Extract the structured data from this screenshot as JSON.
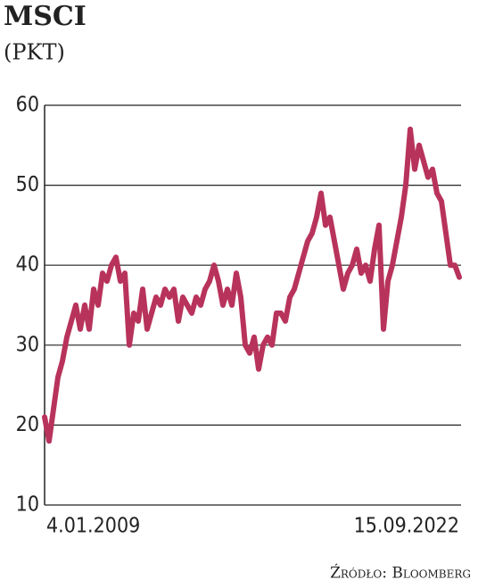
{
  "chart_data": {
    "type": "line",
    "title": "MSCI",
    "subtitle": "(PKT)",
    "source": "Źródło: Bloomberg",
    "categories": [
      "4.01.2009",
      null,
      null,
      null,
      null,
      null,
      null,
      null,
      null,
      null,
      null,
      null,
      null,
      null,
      null,
      null,
      null,
      null,
      null,
      null,
      null,
      null,
      null,
      null,
      null,
      null,
      null,
      null,
      null,
      null,
      null,
      null,
      null,
      null,
      null,
      null,
      null,
      null,
      null,
      null,
      null,
      null,
      null,
      null,
      null,
      null,
      null,
      null,
      null,
      null,
      null,
      null,
      null,
      null,
      null,
      null,
      null,
      null,
      null,
      null,
      null,
      null,
      null,
      null,
      null,
      null,
      null,
      null,
      null,
      null,
      null,
      null,
      null,
      null,
      null,
      null,
      null,
      null,
      null,
      null,
      null,
      null,
      null,
      null,
      null,
      null,
      null,
      null,
      null,
      null,
      null,
      null,
      null,
      "15.09.2022"
    ],
    "series": [
      {
        "color": "#b8335c",
        "values": [
          21,
          18,
          22,
          26,
          28,
          31,
          33,
          35,
          32,
          35,
          32,
          37,
          35,
          39,
          38,
          40,
          41,
          38,
          39,
          30,
          34,
          33,
          37,
          32,
          34,
          36,
          35,
          37,
          36,
          37,
          33,
          36,
          35,
          34,
          36,
          35,
          37,
          38,
          40,
          38,
          35,
          37,
          35,
          39,
          36,
          30,
          29,
          31,
          27,
          30,
          31,
          30,
          34,
          34,
          33,
          36,
          37,
          39,
          41,
          43,
          44,
          46,
          49,
          45,
          46,
          43,
          40,
          37,
          39,
          40,
          42,
          39,
          40,
          38,
          42,
          45,
          32,
          38,
          40,
          43,
          46,
          50,
          57,
          52,
          55,
          53,
          51,
          52,
          49,
          48,
          44,
          40,
          40,
          38.5
        ]
      }
    ],
    "ylim": [
      10,
      60
    ],
    "yticks": [
      10,
      20,
      30,
      40,
      50,
      60
    ],
    "grid": true
  }
}
